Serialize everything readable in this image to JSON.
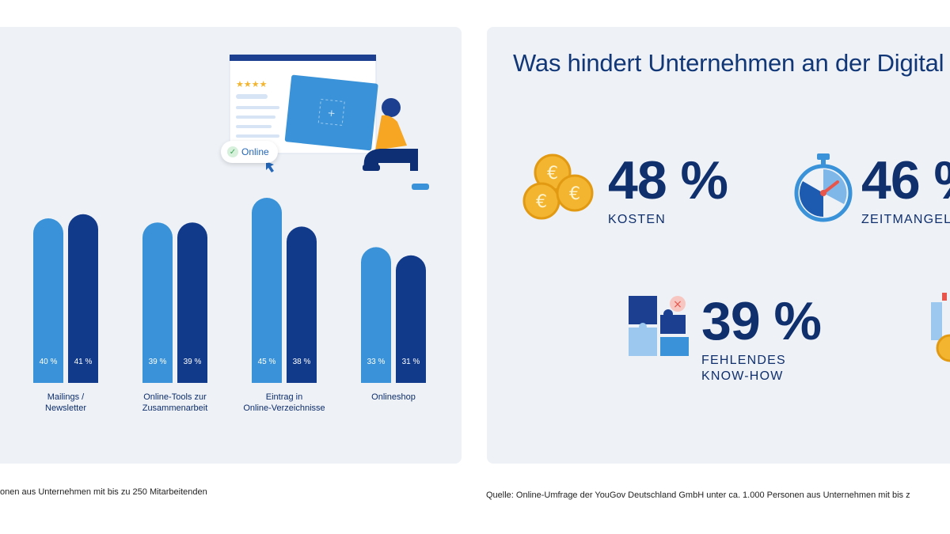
{
  "chart_data": {
    "type": "bar",
    "categories": [
      "Mailings /\nNewsletter",
      "Online-Tools zur\nZusammenarbeit",
      "Eintrag in\nOnline-Verzeichnisse",
      "Onlineshop"
    ],
    "series": [
      {
        "name": "series-1",
        "values": [
          40,
          39,
          45,
          33
        ],
        "labels": [
          "40 %",
          "39 %",
          "45 %",
          "33 %"
        ],
        "color": "#3a93d8"
      },
      {
        "name": "series-2",
        "values": [
          41,
          39,
          38,
          31
        ],
        "labels": [
          "41 %",
          "39 %",
          "38 %",
          "31 %"
        ],
        "color": "#123a8a"
      }
    ],
    "ylim": [
      0,
      45
    ]
  },
  "illustration": {
    "badge_text": "Online"
  },
  "right_panel": {
    "title": "Was hindert Unternehmen an der Digital",
    "stats": [
      {
        "value": "48 %",
        "caption": "KOSTEN",
        "icon": "euro-coins-icon"
      },
      {
        "value": "46 %",
        "caption": "ZEITMANGEL",
        "icon": "stopwatch-icon"
      },
      {
        "value": "39 %",
        "caption": "FEHLENDES\nKNOW-HOW",
        "icon": "puzzle-icon"
      }
    ]
  },
  "footnotes": {
    "left": "onen aus Unternehmen mit bis zu 250 Mitarbeitenden",
    "right": "Quelle: Online-Umfrage der YouGov Deutschland GmbH unter ca. 1.000 Personen aus Unternehmen mit bis z"
  },
  "colors": {
    "panel_bg": "#eef2f7",
    "light_blue": "#3a93d8",
    "dark_blue": "#123a8a",
    "title_blue": "#123777",
    "gold": "#f3b52f"
  }
}
